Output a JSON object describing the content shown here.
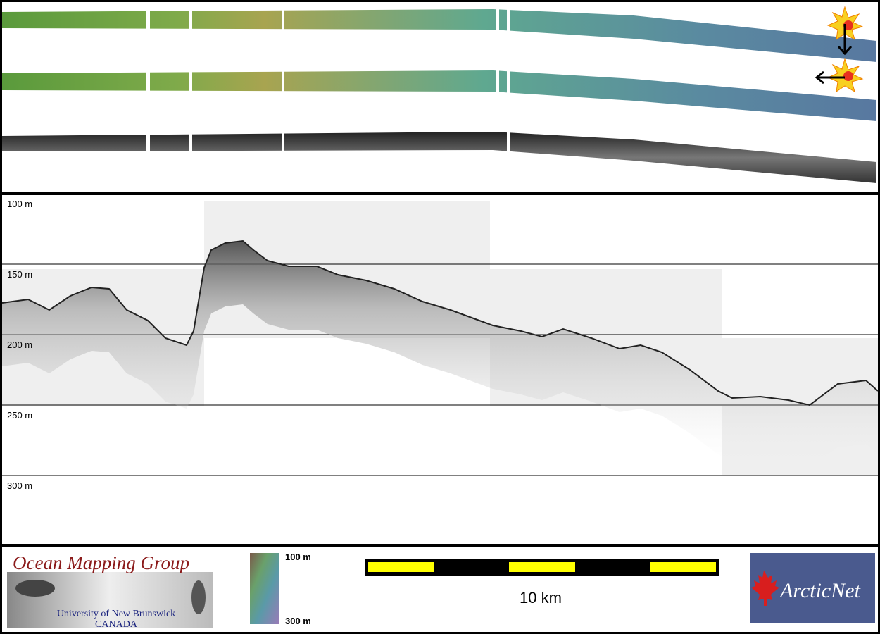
{
  "profile": {
    "depth_labels": [
      "100 m",
      "150 m",
      "200 m",
      "250 m",
      "300 m"
    ]
  },
  "footer": {
    "group_name": "Ocean Mapping Group",
    "university": "University of New Brunswick",
    "country": "CANADA",
    "color_legend": {
      "top": "100 m",
      "bottom": "300 m"
    },
    "scale_bar": "10 km",
    "partner": "ArcticNet"
  }
}
